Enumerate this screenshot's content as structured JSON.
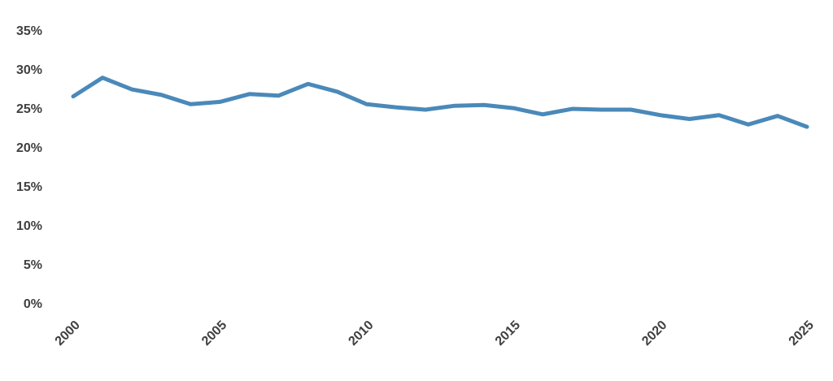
{
  "chart_data": {
    "type": "line",
    "x": [
      2000,
      2001,
      2002,
      2003,
      2004,
      2005,
      2006,
      2007,
      2008,
      2009,
      2010,
      2011,
      2012,
      2013,
      2014,
      2015,
      2016,
      2017,
      2018,
      2019,
      2020,
      2021,
      2022,
      2023,
      2024,
      2025
    ],
    "values": [
      26.7,
      29.1,
      27.6,
      26.9,
      25.7,
      26.0,
      27.0,
      26.8,
      28.3,
      27.3,
      25.7,
      25.3,
      25.0,
      25.5,
      25.6,
      25.2,
      24.4,
      25.1,
      25.0,
      25.0,
      24.3,
      23.8,
      24.3,
      23.1,
      24.2,
      22.8
    ],
    "color": "#4a89b9",
    "xlim": [
      2000,
      2025
    ],
    "xticks": [
      2000,
      2005,
      2010,
      2015,
      2020,
      2025
    ],
    "ylim": [
      0,
      35
    ],
    "yticks": [
      {
        "value": 0,
        "label": "0%"
      },
      {
        "value": 5,
        "label": "5%"
      },
      {
        "value": 10,
        "label": "10%"
      },
      {
        "value": 15,
        "label": "15%"
      },
      {
        "value": 20,
        "label": "20%"
      },
      {
        "value": 25,
        "label": "25%"
      },
      {
        "value": 30,
        "label": "30%"
      },
      {
        "value": 35,
        "label": "35%"
      }
    ],
    "grid": false
  }
}
